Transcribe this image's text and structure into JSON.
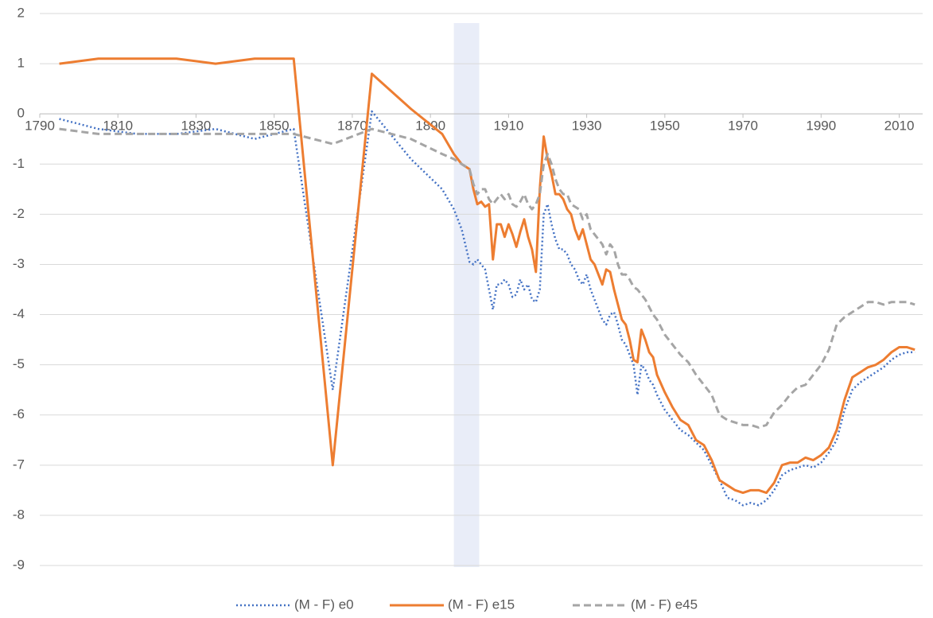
{
  "chart_data": {
    "type": "line",
    "x": [
      1795,
      1805,
      1815,
      1825,
      1835,
      1845,
      1855,
      1865,
      1875,
      1885,
      1893,
      1896,
      1898,
      1900,
      1901,
      1902,
      1903,
      1904,
      1905,
      1906,
      1907,
      1908,
      1909,
      1910,
      1911,
      1912,
      1913,
      1914,
      1915,
      1916,
      1917,
      1918,
      1919,
      1920,
      1921,
      1922,
      1923,
      1924,
      1925,
      1926,
      1927,
      1928,
      1929,
      1930,
      1931,
      1932,
      1933,
      1934,
      1935,
      1936,
      1937,
      1938,
      1939,
      1940,
      1941,
      1942,
      1943,
      1944,
      1945,
      1946,
      1947,
      1948,
      1950,
      1952,
      1954,
      1956,
      1958,
      1960,
      1962,
      1964,
      1966,
      1968,
      1970,
      1972,
      1974,
      1976,
      1978,
      1980,
      1982,
      1984,
      1986,
      1988,
      1990,
      1992,
      1994,
      1996,
      1998,
      2000,
      2002,
      2004,
      2006,
      2008,
      2010,
      2012,
      2014
    ],
    "series": [
      {
        "name": "(M - F) e0",
        "color": "#4472c4",
        "dash": "dotted",
        "values": [
          -0.1,
          -0.3,
          -0.4,
          -0.4,
          -0.3,
          -0.5,
          -0.3,
          -5.5,
          0.05,
          -0.9,
          -1.5,
          -1.9,
          -2.3,
          -2.95,
          -3.0,
          -2.9,
          -3.0,
          -3.1,
          -3.5,
          -3.9,
          -3.4,
          -3.4,
          -3.3,
          -3.4,
          -3.65,
          -3.6,
          -3.3,
          -3.5,
          -3.4,
          -3.7,
          -3.75,
          -3.5,
          -2.0,
          -1.8,
          -2.2,
          -2.5,
          -2.7,
          -2.7,
          -2.8,
          -3.0,
          -3.1,
          -3.3,
          -3.4,
          -3.2,
          -3.5,
          -3.7,
          -3.9,
          -4.1,
          -4.2,
          -4.0,
          -3.95,
          -4.2,
          -4.5,
          -4.6,
          -4.8,
          -5.0,
          -5.6,
          -5.0,
          -5.1,
          -5.3,
          -5.4,
          -5.6,
          -5.9,
          -6.1,
          -6.3,
          -6.4,
          -6.55,
          -6.7,
          -7.0,
          -7.3,
          -7.65,
          -7.7,
          -7.8,
          -7.75,
          -7.8,
          -7.7,
          -7.5,
          -7.2,
          -7.1,
          -7.05,
          -7.0,
          -7.05,
          -6.95,
          -6.75,
          -6.5,
          -5.9,
          -5.5,
          -5.35,
          -5.25,
          -5.15,
          -5.05,
          -4.9,
          -4.8,
          -4.75,
          -4.75
        ]
      },
      {
        "name": "(M - F) e15",
        "color": "#ed7d31",
        "dash": "solid",
        "values": [
          1.0,
          1.1,
          1.1,
          1.1,
          1.0,
          1.1,
          1.1,
          -7.0,
          0.8,
          0.1,
          -0.4,
          -0.8,
          -1.0,
          -1.1,
          -1.5,
          -1.8,
          -1.75,
          -1.85,
          -1.8,
          -2.9,
          -2.2,
          -2.2,
          -2.45,
          -2.2,
          -2.4,
          -2.65,
          -2.35,
          -2.1,
          -2.45,
          -2.7,
          -3.15,
          -1.5,
          -0.45,
          -0.9,
          -1.2,
          -1.6,
          -1.6,
          -1.7,
          -1.9,
          -2.0,
          -2.3,
          -2.5,
          -2.3,
          -2.6,
          -2.9,
          -3.0,
          -3.2,
          -3.4,
          -3.1,
          -3.15,
          -3.5,
          -3.8,
          -4.1,
          -4.2,
          -4.5,
          -4.9,
          -4.95,
          -4.3,
          -4.5,
          -4.75,
          -4.85,
          -5.2,
          -5.55,
          -5.85,
          -6.1,
          -6.2,
          -6.5,
          -6.6,
          -6.9,
          -7.3,
          -7.4,
          -7.5,
          -7.55,
          -7.5,
          -7.5,
          -7.55,
          -7.35,
          -7.0,
          -6.95,
          -6.95,
          -6.85,
          -6.9,
          -6.8,
          -6.65,
          -6.3,
          -5.7,
          -5.25,
          -5.15,
          -5.05,
          -5.0,
          -4.9,
          -4.75,
          -4.65,
          -4.65,
          -4.7
        ]
      },
      {
        "name": "(M - F) e45",
        "color": "#a5a5a5",
        "dash": "dashed",
        "values": [
          -0.3,
          -0.4,
          -0.4,
          -0.4,
          -0.4,
          -0.4,
          -0.4,
          -0.6,
          -0.3,
          -0.5,
          -0.8,
          -0.9,
          -1.0,
          -1.1,
          -1.4,
          -1.6,
          -1.5,
          -1.5,
          -1.7,
          -1.8,
          -1.7,
          -1.6,
          -1.7,
          -1.6,
          -1.8,
          -1.85,
          -1.75,
          -1.6,
          -1.8,
          -1.9,
          -1.8,
          -1.6,
          -1.0,
          -0.8,
          -1.0,
          -1.3,
          -1.5,
          -1.6,
          -1.6,
          -1.8,
          -1.85,
          -1.9,
          -2.1,
          -2.0,
          -2.3,
          -2.4,
          -2.5,
          -2.6,
          -2.8,
          -2.6,
          -2.7,
          -3.0,
          -3.2,
          -3.2,
          -3.3,
          -3.45,
          -3.5,
          -3.6,
          -3.7,
          -3.85,
          -4.0,
          -4.1,
          -4.4,
          -4.6,
          -4.8,
          -4.95,
          -5.2,
          -5.4,
          -5.6,
          -6.0,
          -6.1,
          -6.15,
          -6.2,
          -6.2,
          -6.25,
          -6.2,
          -5.95,
          -5.8,
          -5.6,
          -5.45,
          -5.4,
          -5.2,
          -5.0,
          -4.7,
          -4.2,
          -4.05,
          -3.95,
          -3.85,
          -3.75,
          -3.75,
          -3.8,
          -3.75,
          -3.75,
          -3.75,
          -3.8
        ]
      }
    ],
    "xlim": [
      1790,
      2016
    ],
    "xticks": [
      1790,
      1810,
      1830,
      1850,
      1870,
      1890,
      1910,
      1930,
      1950,
      1970,
      1990,
      2010
    ],
    "ylim": [
      -9,
      2
    ],
    "yticks": [
      -9,
      -8,
      -7,
      -6,
      -5,
      -4,
      -3,
      -2,
      -1,
      0,
      1,
      2
    ],
    "grid": true,
    "legend": "bottom",
    "shaded_band": {
      "range": [
        1896,
        1902.5
      ],
      "color": "#e9edf8"
    }
  }
}
